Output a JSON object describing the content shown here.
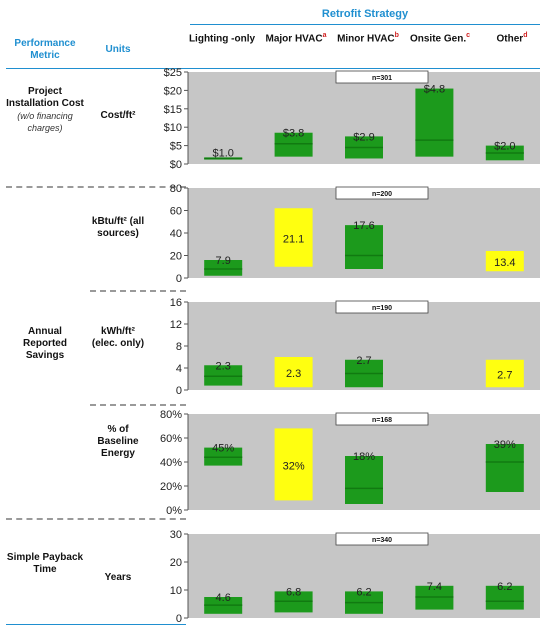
{
  "header": {
    "group_title": "Retrofit Strategy",
    "metric_header": "Performance Metric",
    "units_header": "Units",
    "strategies": [
      {
        "label": "Lighting -only",
        "sup": ""
      },
      {
        "label": "Major HVAC",
        "sup": "a"
      },
      {
        "label": "Minor HVAC",
        "sup": "b"
      },
      {
        "label": "Onsite Gen.",
        "sup": "c"
      },
      {
        "label": "Other",
        "sup": "d"
      }
    ]
  },
  "rows": {
    "cost_metric": "Project Installation Cost",
    "cost_note": "(w/o financing charges)",
    "cost_unit": "Cost/ft²",
    "kbtu_unit": "kBtu/ft² (all sources)",
    "savings_metric": "Annual Reported Savings",
    "kwh_unit": "kWh/ft² (elec. only)",
    "pct_unit": "% of Baseline Energy",
    "payback_metric": "Simple Payback Time",
    "payback_unit": "Years"
  },
  "colors": {
    "panel_bg": "#c6c6c6",
    "green": "#1c9a1c",
    "green_dark": "#117a11",
    "yellow": "#ffff10"
  },
  "chart_data": [
    {
      "type": "bar",
      "id": "cost",
      "n_label": "n=301",
      "ylim": [
        0,
        25
      ],
      "ticks": [
        "$0",
        "$5",
        "$10",
        "$15",
        "$20",
        "$25"
      ],
      "categories": [
        "Lighting-only",
        "Major HVAC",
        "Minor HVAC",
        "Onsite Gen.",
        "Other"
      ],
      "bars": [
        {
          "low": 1.2,
          "high": 1.8,
          "median": 1.5,
          "label": "$1.0",
          "color": "green"
        },
        {
          "low": 2.0,
          "high": 8.5,
          "median": 5.5,
          "label": "$3.8",
          "color": "green"
        },
        {
          "low": 1.5,
          "high": 7.5,
          "median": 4.5,
          "label": "$2.9",
          "color": "green"
        },
        {
          "low": 2.0,
          "high": 20.5,
          "median": 6.5,
          "label": "$4.8",
          "color": "green"
        },
        {
          "low": 1.0,
          "high": 5.0,
          "median": 3.0,
          "label": "$2.0",
          "color": "green"
        }
      ]
    },
    {
      "type": "bar",
      "id": "kbtu",
      "n_label": "n=200",
      "ylim": [
        0,
        80
      ],
      "ticks": [
        "0",
        "20",
        "40",
        "60",
        "80"
      ],
      "categories": [
        "Lighting-only",
        "Major HVAC",
        "Minor HVAC",
        "Onsite Gen.",
        "Other"
      ],
      "bars": [
        {
          "low": 2.0,
          "high": 16.0,
          "median": 8.0,
          "label": "7.9",
          "color": "green"
        },
        {
          "low": 10.0,
          "high": 62.0,
          "median": null,
          "label": "21.1",
          "color": "yellow"
        },
        {
          "low": 8.0,
          "high": 47.0,
          "median": 20.0,
          "label": "17.6",
          "color": "green"
        },
        null,
        {
          "low": 6.0,
          "high": 24.0,
          "median": null,
          "label": "13.4",
          "color": "yellow"
        }
      ]
    },
    {
      "type": "bar",
      "id": "kwh",
      "n_label": "n=190",
      "ylim": [
        0,
        16
      ],
      "ticks": [
        "0",
        "4",
        "8",
        "12",
        "16"
      ],
      "categories": [
        "Lighting-only",
        "Major HVAC",
        "Minor HVAC",
        "Onsite Gen.",
        "Other"
      ],
      "bars": [
        {
          "low": 0.8,
          "high": 4.5,
          "median": 2.5,
          "label": "2.3",
          "color": "green"
        },
        {
          "low": 0.5,
          "high": 6.0,
          "median": null,
          "label": "2.3",
          "color": "yellow"
        },
        {
          "low": 0.5,
          "high": 5.5,
          "median": 3.0,
          "label": "2.7",
          "color": "green"
        },
        null,
        {
          "low": 0.5,
          "high": 5.5,
          "median": null,
          "label": "2.7",
          "color": "yellow"
        }
      ]
    },
    {
      "type": "bar",
      "id": "pct",
      "n_label": "n=168",
      "ylim": [
        0,
        80
      ],
      "ticks": [
        "0%",
        "20%",
        "40%",
        "60%",
        "80%"
      ],
      "categories": [
        "Lighting-only",
        "Major HVAC",
        "Minor HVAC",
        "Onsite Gen.",
        "Other"
      ],
      "bars": [
        {
          "low": 37,
          "high": 52,
          "median": 44,
          "label": "45%",
          "color": "green"
        },
        {
          "low": 8,
          "high": 68,
          "median": null,
          "label": "32%",
          "color": "yellow"
        },
        {
          "low": 5,
          "high": 45,
          "median": 18,
          "label": "18%",
          "color": "green"
        },
        null,
        {
          "low": 15,
          "high": 55,
          "median": 40,
          "label": "39%",
          "color": "green"
        }
      ]
    },
    {
      "type": "bar",
      "id": "payback",
      "n_label": "n=340",
      "ylim": [
        0,
        30
      ],
      "ticks": [
        "0",
        "10",
        "20",
        "30"
      ],
      "categories": [
        "Lighting-only",
        "Major HVAC",
        "Minor HVAC",
        "Onsite Gen.",
        "Other"
      ],
      "bars": [
        {
          "low": 1.5,
          "high": 7.5,
          "median": 4.6,
          "label": "4.6",
          "color": "green"
        },
        {
          "low": 2.0,
          "high": 9.5,
          "median": 6.0,
          "label": "6.8",
          "color": "green"
        },
        {
          "low": 1.5,
          "high": 9.5,
          "median": 5.5,
          "label": "6.2",
          "color": "green"
        },
        {
          "low": 3.0,
          "high": 11.5,
          "median": 7.5,
          "label": "7.4",
          "color": "green"
        },
        {
          "low": 3.0,
          "high": 11.5,
          "median": 6.0,
          "label": "6.2",
          "color": "green"
        }
      ]
    }
  ]
}
